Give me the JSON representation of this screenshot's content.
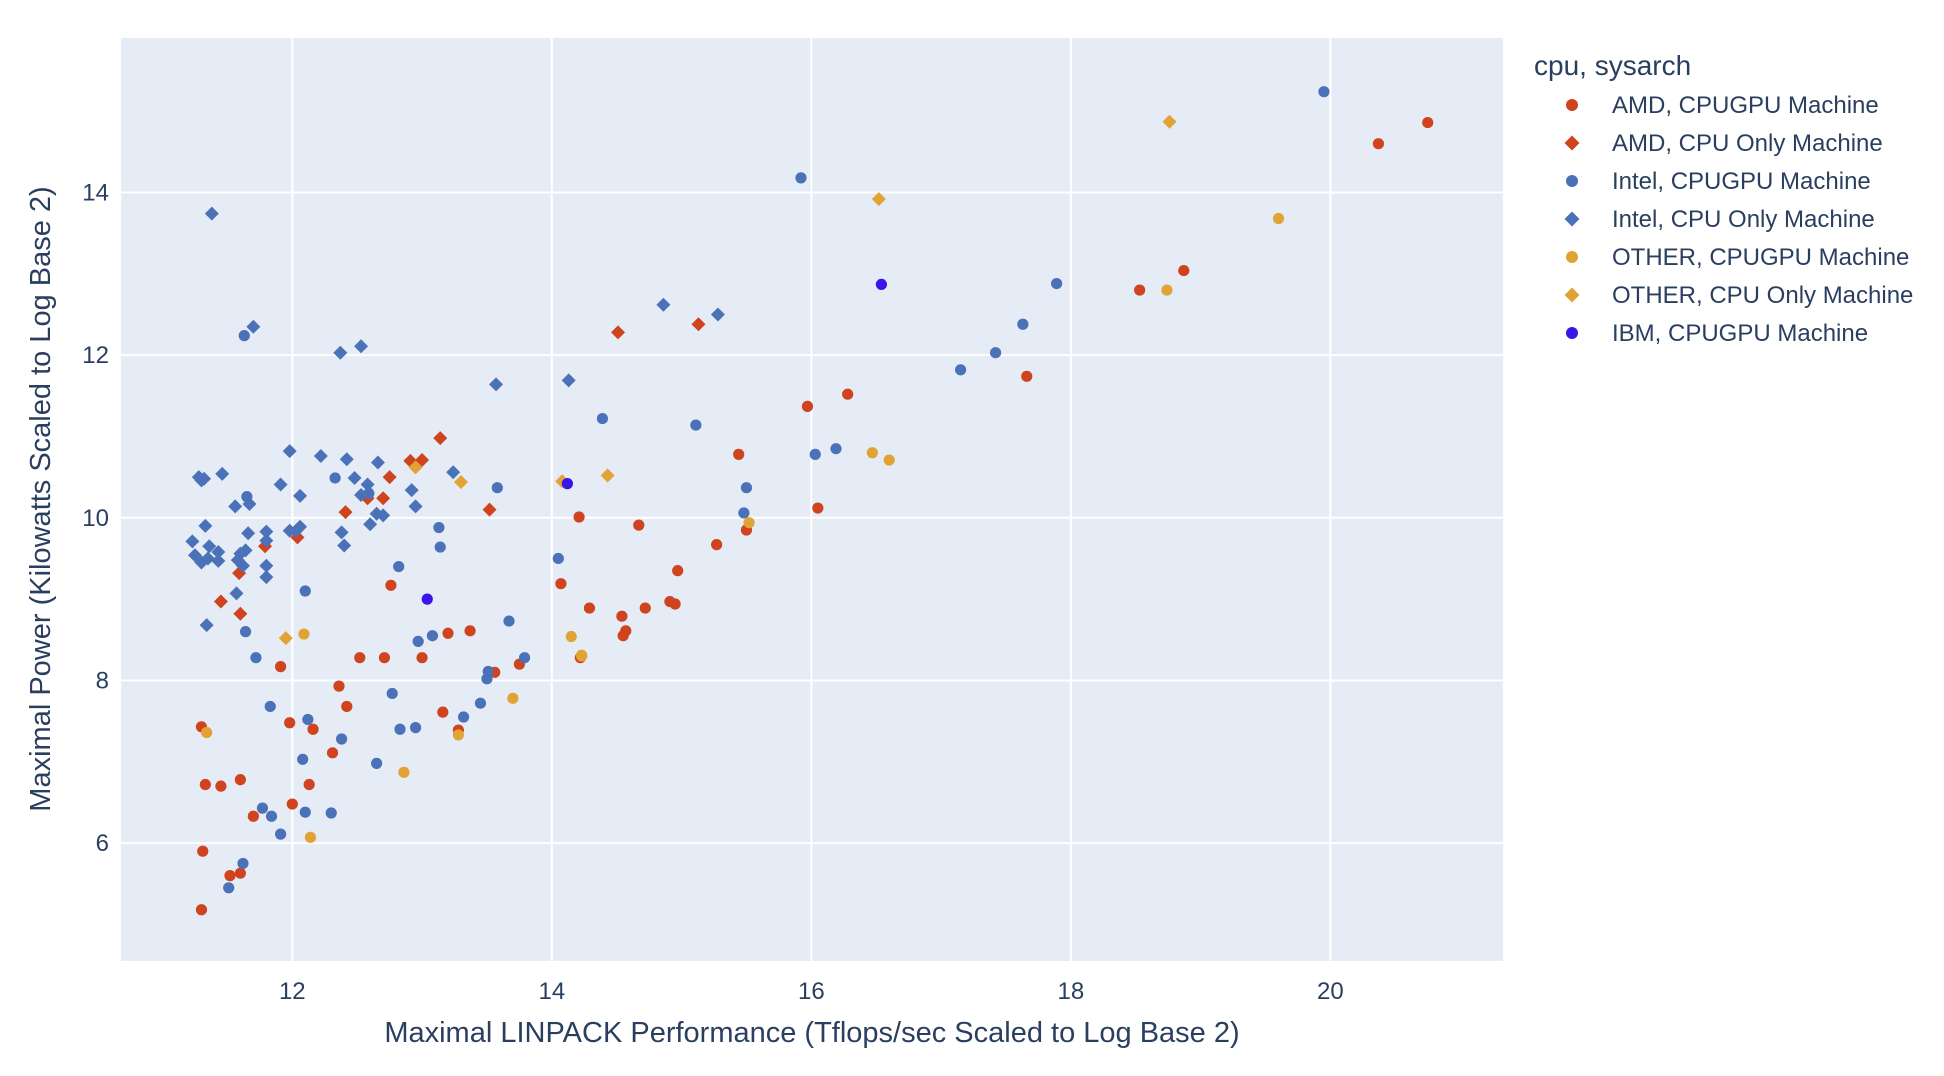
{
  "chart_data": {
    "type": "scatter",
    "title": "",
    "xlabel": "Maximal LINPACK Performance (Tflops/sec Scaled to Log Base 2)",
    "ylabel": "Maximal Power (Kilowatts Scaled to Log Base 2)",
    "xlim": [
      10.68,
      21.33
    ],
    "ylim": [
      4.55,
      15.9
    ],
    "xticks": [
      12,
      14,
      16,
      18,
      20
    ],
    "yticks": [
      6,
      8,
      10,
      12,
      14
    ],
    "grid": true,
    "legend_title": "cpu, sysarch",
    "legend_position": "right",
    "series": [
      {
        "name": "AMD, CPUGPU Machine",
        "color": "#d0431f",
        "marker": "circle",
        "points": [
          [
            11.3,
            7.43
          ],
          [
            11.33,
            6.72
          ],
          [
            11.31,
            5.9
          ],
          [
            11.3,
            5.18
          ],
          [
            11.45,
            6.7
          ],
          [
            11.52,
            5.6
          ],
          [
            11.6,
            5.63
          ],
          [
            11.6,
            6.78
          ],
          [
            11.7,
            6.33
          ],
          [
            11.91,
            8.17
          ],
          [
            11.98,
            7.48
          ],
          [
            12.0,
            6.48
          ],
          [
            12.13,
            6.72
          ],
          [
            12.16,
            7.4
          ],
          [
            12.31,
            7.11
          ],
          [
            12.36,
            7.93
          ],
          [
            12.42,
            7.68
          ],
          [
            12.52,
            8.28
          ],
          [
            12.71,
            8.28
          ],
          [
            12.76,
            9.17
          ],
          [
            13.0,
            8.28
          ],
          [
            13.16,
            7.61
          ],
          [
            13.2,
            8.58
          ],
          [
            13.28,
            7.39
          ],
          [
            13.37,
            8.61
          ],
          [
            13.56,
            8.1
          ],
          [
            13.75,
            8.2
          ],
          [
            14.07,
            9.19
          ],
          [
            14.21,
            10.01
          ],
          [
            14.22,
            8.28
          ],
          [
            14.29,
            8.89
          ],
          [
            14.54,
            8.79
          ],
          [
            14.55,
            8.55
          ],
          [
            14.57,
            8.61
          ],
          [
            14.67,
            9.91
          ],
          [
            14.72,
            8.89
          ],
          [
            14.91,
            8.97
          ],
          [
            14.95,
            8.94
          ],
          [
            14.97,
            9.35
          ],
          [
            15.27,
            9.67
          ],
          [
            15.44,
            10.78
          ],
          [
            15.5,
            9.85
          ],
          [
            15.97,
            11.37
          ],
          [
            16.05,
            10.12
          ],
          [
            16.28,
            11.52
          ],
          [
            17.66,
            11.74
          ],
          [
            18.53,
            12.8
          ],
          [
            18.87,
            13.04
          ],
          [
            20.37,
            14.6
          ],
          [
            20.75,
            14.86
          ]
        ]
      },
      {
        "name": "AMD, CPU Only Machine",
        "color": "#d0431f",
        "marker": "diamond",
        "points": [
          [
            11.45,
            8.97
          ],
          [
            11.59,
            9.32
          ],
          [
            11.6,
            8.82
          ],
          [
            11.79,
            9.65
          ],
          [
            12.04,
            9.76
          ],
          [
            12.41,
            10.07
          ],
          [
            12.58,
            10.24
          ],
          [
            12.7,
            10.24
          ],
          [
            12.75,
            10.5
          ],
          [
            12.91,
            10.7
          ],
          [
            13.0,
            10.71
          ],
          [
            13.14,
            10.98
          ],
          [
            13.52,
            10.1
          ],
          [
            14.51,
            12.28
          ],
          [
            15.13,
            12.38
          ]
        ]
      },
      {
        "name": "Intel, CPUGPU Machine",
        "color": "#4b72b8",
        "marker": "circle",
        "points": [
          [
            11.51,
            5.45
          ],
          [
            11.62,
            5.75
          ],
          [
            11.63,
            12.24
          ],
          [
            11.65,
            10.26
          ],
          [
            11.64,
            8.6
          ],
          [
            11.72,
            8.28
          ],
          [
            11.77,
            6.43
          ],
          [
            11.83,
            7.68
          ],
          [
            11.84,
            6.33
          ],
          [
            11.91,
            6.11
          ],
          [
            12.08,
            7.03
          ],
          [
            12.1,
            9.1
          ],
          [
            12.1,
            6.38
          ],
          [
            12.12,
            7.52
          ],
          [
            12.3,
            6.37
          ],
          [
            12.33,
            10.49
          ],
          [
            12.38,
            7.28
          ],
          [
            12.59,
            10.3
          ],
          [
            12.65,
            6.98
          ],
          [
            12.77,
            7.84
          ],
          [
            12.82,
            9.4
          ],
          [
            12.83,
            7.4
          ],
          [
            12.95,
            7.42
          ],
          [
            12.97,
            8.48
          ],
          [
            13.08,
            8.55
          ],
          [
            13.13,
            9.88
          ],
          [
            13.14,
            9.64
          ],
          [
            13.32,
            7.55
          ],
          [
            13.45,
            7.72
          ],
          [
            13.5,
            8.02
          ],
          [
            13.51,
            8.11
          ],
          [
            13.58,
            10.37
          ],
          [
            13.67,
            8.73
          ],
          [
            13.79,
            8.28
          ],
          [
            14.05,
            9.5
          ],
          [
            14.39,
            11.22
          ],
          [
            15.11,
            11.14
          ],
          [
            15.48,
            10.06
          ],
          [
            15.5,
            10.37
          ],
          [
            15.92,
            14.18
          ],
          [
            16.03,
            10.78
          ],
          [
            16.19,
            10.85
          ],
          [
            17.15,
            11.82
          ],
          [
            17.42,
            12.03
          ],
          [
            17.63,
            12.38
          ],
          [
            17.89,
            12.88
          ],
          [
            19.95,
            15.24
          ]
        ]
      },
      {
        "name": "Intel, CPU Only Machine",
        "color": "#4b72b8",
        "marker": "diamond",
        "points": [
          [
            11.23,
            9.71
          ],
          [
            11.25,
            9.54
          ],
          [
            11.28,
            10.5
          ],
          [
            11.3,
            9.45
          ],
          [
            11.3,
            10.46
          ],
          [
            11.32,
            10.48
          ],
          [
            11.33,
            9.9
          ],
          [
            11.35,
            9.5
          ],
          [
            11.36,
            9.65
          ],
          [
            11.34,
            8.68
          ],
          [
            11.38,
            13.74
          ],
          [
            11.43,
            9.58
          ],
          [
            11.43,
            9.47
          ],
          [
            11.46,
            10.54
          ],
          [
            11.56,
            10.14
          ],
          [
            11.57,
            9.07
          ],
          [
            11.58,
            9.48
          ],
          [
            11.6,
            9.56
          ],
          [
            11.62,
            9.41
          ],
          [
            11.64,
            9.6
          ],
          [
            11.66,
            9.81
          ],
          [
            11.67,
            10.17
          ],
          [
            11.7,
            12.35
          ],
          [
            11.8,
            9.83
          ],
          [
            11.8,
            9.72
          ],
          [
            11.8,
            9.41
          ],
          [
            11.8,
            9.27
          ],
          [
            11.91,
            10.41
          ],
          [
            11.98,
            10.82
          ],
          [
            11.98,
            9.84
          ],
          [
            12.03,
            9.84
          ],
          [
            12.06,
            9.89
          ],
          [
            12.06,
            10.27
          ],
          [
            12.22,
            10.76
          ],
          [
            12.37,
            12.03
          ],
          [
            12.38,
            9.82
          ],
          [
            12.4,
            9.66
          ],
          [
            12.42,
            10.72
          ],
          [
            12.48,
            10.49
          ],
          [
            12.53,
            12.11
          ],
          [
            12.53,
            10.28
          ],
          [
            12.58,
            10.41
          ],
          [
            12.6,
            9.92
          ],
          [
            12.66,
            10.68
          ],
          [
            12.65,
            10.05
          ],
          [
            12.7,
            10.03
          ],
          [
            12.92,
            10.34
          ],
          [
            12.95,
            10.14
          ],
          [
            13.24,
            10.56
          ],
          [
            13.57,
            11.64
          ],
          [
            14.13,
            11.69
          ],
          [
            14.86,
            12.62
          ],
          [
            15.28,
            12.5
          ]
        ]
      },
      {
        "name": "OTHER, CPUGPU Machine",
        "color": "#e1a336",
        "marker": "circle",
        "points": [
          [
            11.34,
            7.36
          ],
          [
            12.09,
            8.57
          ],
          [
            12.14,
            6.07
          ],
          [
            12.86,
            6.87
          ],
          [
            13.28,
            7.33
          ],
          [
            13.7,
            7.78
          ],
          [
            14.15,
            8.54
          ],
          [
            14.23,
            8.3
          ],
          [
            14.23,
            8.31
          ],
          [
            15.52,
            9.94
          ],
          [
            16.47,
            10.8
          ],
          [
            16.6,
            10.71
          ],
          [
            18.74,
            12.8
          ],
          [
            19.6,
            13.68
          ]
        ]
      },
      {
        "name": "OTHER, CPU Only Machine",
        "color": "#e1a336",
        "marker": "diamond",
        "points": [
          [
            11.95,
            8.52
          ],
          [
            12.95,
            10.62
          ],
          [
            13.3,
            10.44
          ],
          [
            14.08,
            10.45
          ],
          [
            14.43,
            10.52
          ],
          [
            16.52,
            13.92
          ],
          [
            18.76,
            14.87
          ]
        ]
      },
      {
        "name": "IBM, CPUGPU Machine",
        "color": "#3a14e8",
        "marker": "circle",
        "points": [
          [
            13.04,
            9.0
          ],
          [
            14.12,
            10.42
          ],
          [
            16.54,
            12.87
          ]
        ]
      }
    ]
  }
}
